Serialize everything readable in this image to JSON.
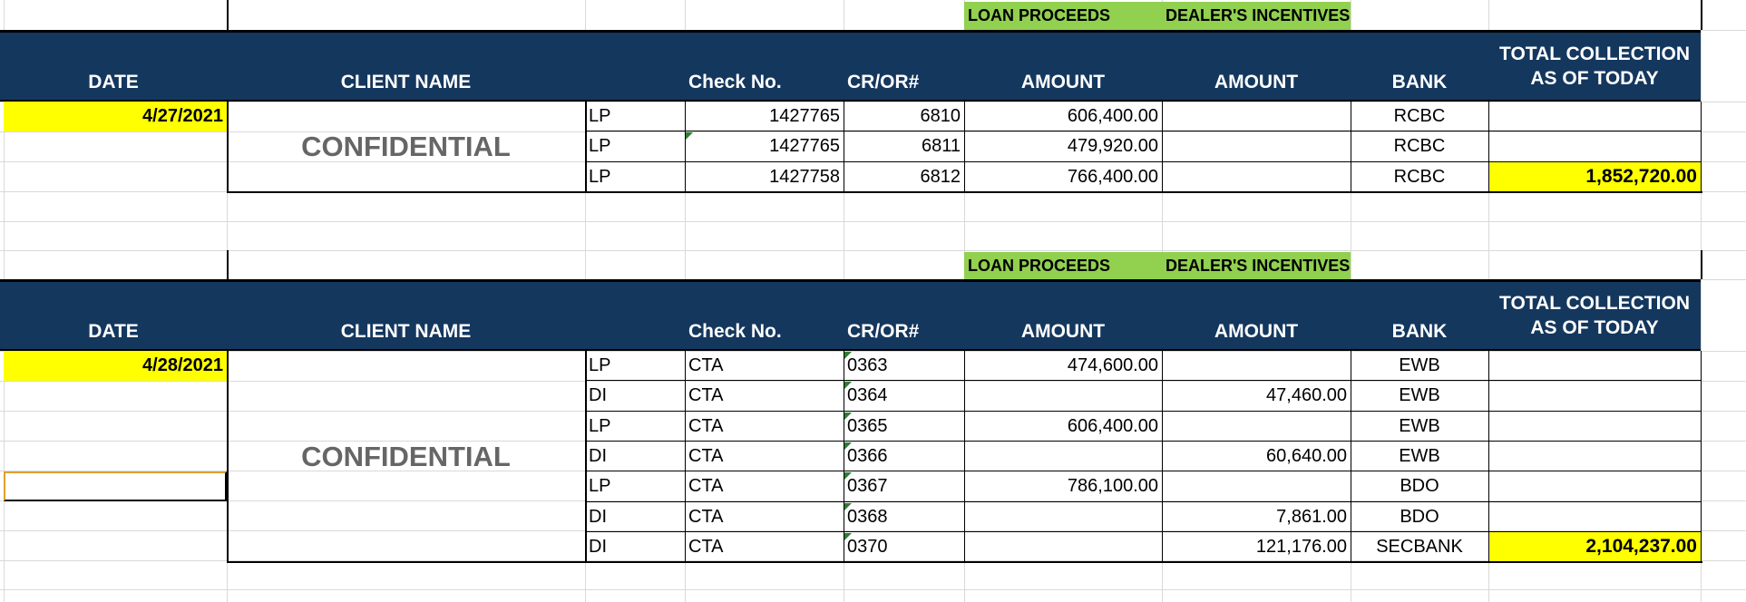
{
  "sheet": {
    "colors": {
      "header_bg": "#14375e",
      "header_text": "#ffffff",
      "group_label_bg": "#92d050",
      "highlight": "#ffff00",
      "confidential_text": "#666666",
      "gridline": "#d9d9d9"
    },
    "tables": [
      {
        "group_labels": {
          "loan_proceeds": "LOAN PROCEEDS",
          "dealers_incentives": "DEALER'S INCENTIVES"
        },
        "headers": {
          "date": "DATE",
          "client_name": "CLIENT NAME",
          "type": "",
          "check_no": "Check No.",
          "cr_or": "CR/OR#",
          "lp_amount": "AMOUNT",
          "di_amount": "AMOUNT",
          "bank": "BANK",
          "total": "TOTAL COLLECTION AS OF TODAY"
        },
        "date": "4/27/2021",
        "client_name": "CONFIDENTIAL",
        "rows": [
          {
            "type": "LP",
            "check_no": "1427765",
            "cr_or": "6810",
            "lp_amount": "606,400.00",
            "di_amount": "",
            "bank": "RCBC"
          },
          {
            "type": "LP",
            "check_no": "1427765",
            "cr_or": "6811",
            "lp_amount": "479,920.00",
            "di_amount": "",
            "bank": "RCBC"
          },
          {
            "type": "LP",
            "check_no": "1427758",
            "cr_or": "6812",
            "lp_amount": "766,400.00",
            "di_amount": "",
            "bank": "RCBC"
          }
        ],
        "total": "1,852,720.00"
      },
      {
        "group_labels": {
          "loan_proceeds": "LOAN PROCEEDS",
          "dealers_incentives": "DEALER'S INCENTIVES"
        },
        "headers": {
          "date": "DATE",
          "client_name": "CLIENT NAME",
          "type": "",
          "check_no": "Check No.",
          "cr_or": "CR/OR#",
          "lp_amount": "AMOUNT",
          "di_amount": "AMOUNT",
          "bank": "BANK",
          "total": "TOTAL COLLECTION AS OF TODAY"
        },
        "date": "4/28/2021",
        "client_name": "CONFIDENTIAL",
        "rows": [
          {
            "type": "LP",
            "check_no": "CTA",
            "cr_or": "0363",
            "lp_amount": "474,600.00",
            "di_amount": "",
            "bank": "EWB"
          },
          {
            "type": "DI",
            "check_no": "CTA",
            "cr_or": "0364",
            "lp_amount": "",
            "di_amount": "47,460.00",
            "bank": "EWB"
          },
          {
            "type": "LP",
            "check_no": "CTA",
            "cr_or": "0365",
            "lp_amount": "606,400.00",
            "di_amount": "",
            "bank": "EWB"
          },
          {
            "type": "DI",
            "check_no": "CTA",
            "cr_or": "0366",
            "lp_amount": "",
            "di_amount": "60,640.00",
            "bank": "EWB"
          },
          {
            "type": "LP",
            "check_no": "CTA",
            "cr_or": "0367",
            "lp_amount": "786,100.00",
            "di_amount": "",
            "bank": "BDO"
          },
          {
            "type": "DI",
            "check_no": "CTA",
            "cr_or": "0368",
            "lp_amount": "",
            "di_amount": "7,861.00",
            "bank": "BDO"
          },
          {
            "type": "DI",
            "check_no": "CTA",
            "cr_or": "0370",
            "lp_amount": "",
            "di_amount": "121,176.00",
            "bank": "SECBANK"
          }
        ],
        "total": "2,104,237.00"
      }
    ]
  }
}
